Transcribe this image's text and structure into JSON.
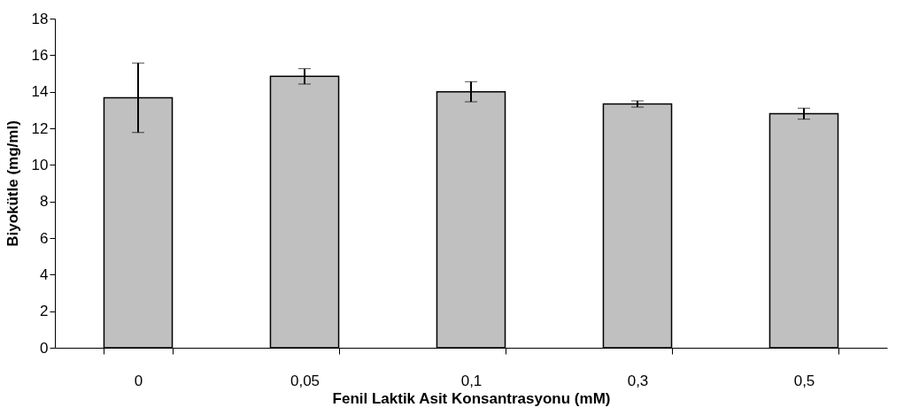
{
  "chart_data": {
    "type": "bar",
    "xlabel": "Fenil Laktik Asit Konsantrasyonu (mM)",
    "ylabel": "Biyokütle (mg/ml)",
    "categories": [
      "0",
      "0,05",
      "0,1",
      "0,3",
      "0,5"
    ],
    "values": [
      13.67,
      14.84,
      14.0,
      13.33,
      12.8
    ],
    "errors": [
      1.9,
      0.42,
      0.55,
      0.17,
      0.3
    ],
    "color": "#c0c0c0",
    "ylim": [
      0,
      18
    ],
    "yticks": [
      0,
      2,
      4,
      6,
      8,
      10,
      12,
      14,
      16,
      18
    ],
    "grid": false
  }
}
